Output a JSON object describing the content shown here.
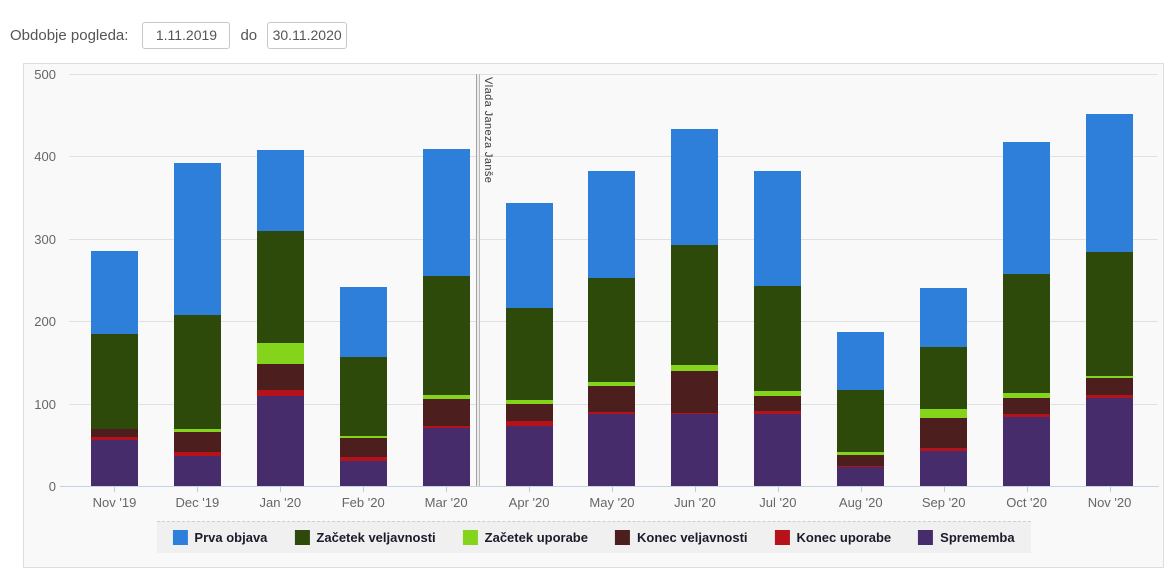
{
  "header": {
    "label": "Obdobje pogleda:",
    "date_from": "1.11.2019",
    "separator": "do",
    "date_to": "30.11.2020"
  },
  "chart_data": {
    "type": "bar",
    "stacked": true,
    "title": "",
    "xlabel": "",
    "ylabel": "",
    "ylim": [
      0,
      500
    ],
    "y_ticks": [
      0,
      100,
      200,
      300,
      400,
      500
    ],
    "grid": true,
    "legend_position": "bottom",
    "categories": [
      "Nov '19",
      "Dec '19",
      "Jan '20",
      "Feb '20",
      "Mar '20",
      "Apr '20",
      "May '20",
      "Jun '20",
      "Jul '20",
      "Aug '20",
      "Sep '20",
      "Oct '20",
      "Nov '20"
    ],
    "series": [
      {
        "name": "Sprememba",
        "color": "#462c6b",
        "values": [
          56,
          37,
          109,
          30,
          70,
          73,
          87,
          88,
          87,
          23,
          42,
          84,
          107
        ]
      },
      {
        "name": "Konec uporabe",
        "color": "#b5121a",
        "values": [
          4,
          4,
          7,
          5,
          3,
          6,
          3,
          1,
          4,
          1,
          4,
          4,
          4
        ]
      },
      {
        "name": "Konec veljavnosti",
        "color": "#4c1e1e",
        "values": [
          9,
          24,
          32,
          23,
          33,
          20,
          31,
          51,
          18,
          14,
          37,
          19,
          20
        ]
      },
      {
        "name": "Začetek uporabe",
        "color": "#83d41b",
        "values": [
          0,
          4,
          26,
          3,
          4,
          6,
          5,
          7,
          6,
          3,
          10,
          6,
          3
        ]
      },
      {
        "name": "Začetek veljavnosti",
        "color": "#2d4a0b",
        "values": [
          115,
          139,
          136,
          96,
          145,
          111,
          127,
          145,
          128,
          76,
          76,
          144,
          150
        ]
      },
      {
        "name": "Prva objava",
        "color": "#2e7fd9",
        "values": [
          101,
          184,
          98,
          84,
          154,
          128,
          129,
          141,
          139,
          70,
          71,
          161,
          168
        ]
      }
    ],
    "totals": [
      285,
      392,
      408,
      241,
      409,
      344,
      382,
      433,
      382,
      187,
      240,
      418,
      452
    ],
    "legend_order": [
      "Prva objava",
      "Začetek veljavnosti",
      "Začetek uporabe",
      "Konec veljavnosti",
      "Konec uporabe",
      "Sprememba"
    ],
    "annotation": {
      "label": "Vlada Janeza Janše",
      "x_between": [
        "Mar '20",
        "Apr '20"
      ]
    }
  }
}
